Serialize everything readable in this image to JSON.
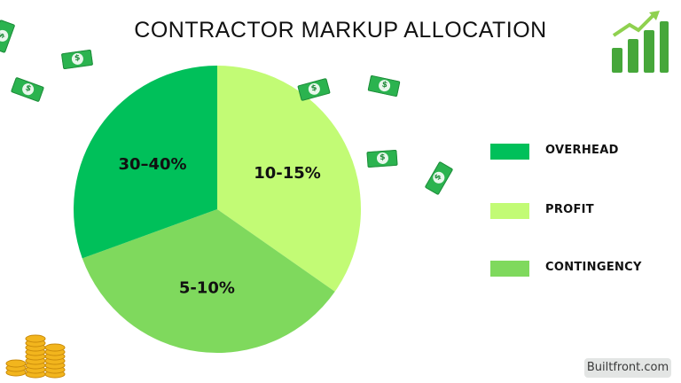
{
  "chart_data": {
    "type": "pie",
    "title": "CONTRACTOR MARKUP ALLOCATION",
    "slices": [
      {
        "name": "PROFIT",
        "label": "10-15%",
        "value": 125,
        "color": "#c2fb75"
      },
      {
        "name": "CONTINGENCY",
        "label": "5-10%",
        "value": 125,
        "color": "#7fd95d"
      },
      {
        "name": "OVERHEAD",
        "label": "30–40%",
        "value": 110,
        "color": "#00c05a"
      }
    ],
    "legend": [
      {
        "label": "OVERHEAD",
        "color": "#00c05a"
      },
      {
        "label": "PROFIT",
        "color": "#c2fb75"
      },
      {
        "label": "CONTINGENCY",
        "color": "#7fd95d"
      }
    ],
    "legend_position": "right"
  },
  "watermark": "Builtfront.com",
  "decorations": {
    "growth_chart_icon": "growth-chart-icon",
    "money_bill_icon": "money-bill-icon",
    "coin_stack_icon": "coin-stack-icon"
  }
}
